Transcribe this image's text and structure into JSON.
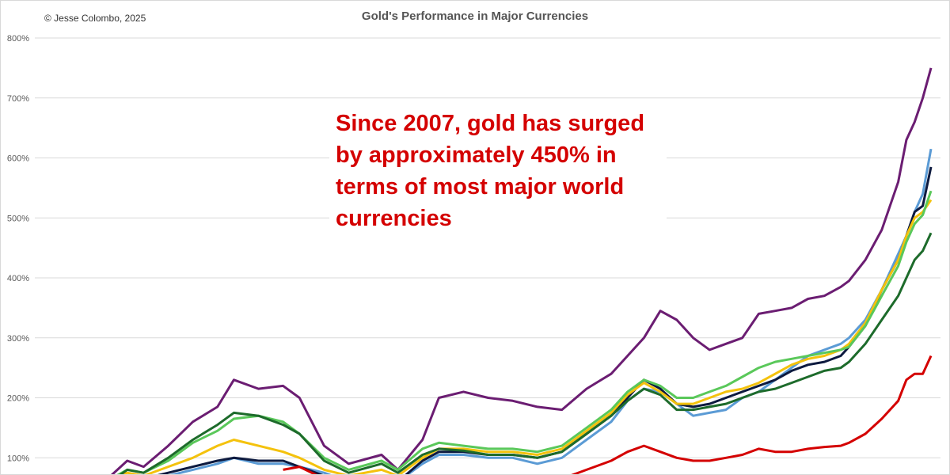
{
  "copyright": "© Jesse Colombo, 2025",
  "annotation": "Since 2007, gold has surged by approximately 450% in terms of most major world currencies",
  "chart_data": {
    "type": "line",
    "title": "Gold's Performance in Major Currencies",
    "xlabel": "",
    "ylabel": "",
    "ylim": [
      0,
      800
    ],
    "y_ticks": [
      "100%",
      "200%",
      "300%",
      "400%",
      "500%",
      "600%",
      "700%",
      "800%"
    ],
    "grid": true,
    "legend": "none",
    "x_domain": [
      0,
      100
    ],
    "series": [
      {
        "color": "#6b1d72",
        "points": [
          [
            0,
            70
          ],
          [
            2,
            95
          ],
          [
            4,
            85
          ],
          [
            7,
            120
          ],
          [
            10,
            160
          ],
          [
            13,
            185
          ],
          [
            15,
            230
          ],
          [
            18,
            215
          ],
          [
            21,
            220
          ],
          [
            23,
            200
          ],
          [
            26,
            120
          ],
          [
            29,
            90
          ],
          [
            33,
            105
          ],
          [
            35,
            80
          ],
          [
            38,
            130
          ],
          [
            40,
            200
          ],
          [
            43,
            210
          ],
          [
            46,
            200
          ],
          [
            49,
            195
          ],
          [
            52,
            185
          ],
          [
            55,
            180
          ],
          [
            58,
            215
          ],
          [
            61,
            240
          ],
          [
            63,
            270
          ],
          [
            65,
            300
          ],
          [
            67,
            345
          ],
          [
            69,
            330
          ],
          [
            71,
            300
          ],
          [
            73,
            280
          ],
          [
            75,
            290
          ],
          [
            77,
            300
          ],
          [
            79,
            340
          ],
          [
            81,
            345
          ],
          [
            83,
            350
          ],
          [
            85,
            365
          ],
          [
            87,
            370
          ],
          [
            89,
            385
          ],
          [
            90,
            395
          ],
          [
            92,
            430
          ],
          [
            94,
            480
          ],
          [
            96,
            560
          ],
          [
            97,
            630
          ],
          [
            98,
            660
          ],
          [
            99,
            700
          ],
          [
            100,
            750
          ]
        ]
      },
      {
        "color": "#5b9bd5",
        "points": [
          [
            0,
            60
          ],
          [
            2,
            70
          ],
          [
            4,
            65
          ],
          [
            7,
            70
          ],
          [
            10,
            80
          ],
          [
            13,
            90
          ],
          [
            15,
            100
          ],
          [
            18,
            90
          ],
          [
            21,
            90
          ],
          [
            23,
            85
          ],
          [
            26,
            75
          ],
          [
            29,
            60
          ],
          [
            33,
            70
          ],
          [
            35,
            60
          ],
          [
            38,
            90
          ],
          [
            40,
            105
          ],
          [
            43,
            105
          ],
          [
            46,
            100
          ],
          [
            49,
            100
          ],
          [
            52,
            90
          ],
          [
            55,
            100
          ],
          [
            58,
            130
          ],
          [
            61,
            160
          ],
          [
            63,
            195
          ],
          [
            65,
            215
          ],
          [
            67,
            210
          ],
          [
            69,
            190
          ],
          [
            71,
            170
          ],
          [
            73,
            175
          ],
          [
            75,
            180
          ],
          [
            77,
            200
          ],
          [
            79,
            210
          ],
          [
            81,
            230
          ],
          [
            83,
            250
          ],
          [
            85,
            270
          ],
          [
            87,
            280
          ],
          [
            89,
            290
          ],
          [
            90,
            300
          ],
          [
            92,
            330
          ],
          [
            94,
            380
          ],
          [
            96,
            440
          ],
          [
            97,
            470
          ],
          [
            98,
            510
          ],
          [
            99,
            540
          ],
          [
            100,
            615
          ]
        ]
      },
      {
        "color": "#0d1a3f",
        "points": [
          [
            0,
            55
          ],
          [
            2,
            70
          ],
          [
            4,
            65
          ],
          [
            7,
            75
          ],
          [
            10,
            85
          ],
          [
            13,
            95
          ],
          [
            15,
            100
          ],
          [
            18,
            95
          ],
          [
            21,
            95
          ],
          [
            23,
            85
          ],
          [
            26,
            70
          ],
          [
            29,
            60
          ],
          [
            33,
            70
          ],
          [
            35,
            60
          ],
          [
            38,
            95
          ],
          [
            40,
            110
          ],
          [
            43,
            110
          ],
          [
            46,
            105
          ],
          [
            49,
            105
          ],
          [
            52,
            100
          ],
          [
            55,
            110
          ],
          [
            58,
            140
          ],
          [
            61,
            170
          ],
          [
            63,
            200
          ],
          [
            65,
            230
          ],
          [
            67,
            215
          ],
          [
            69,
            190
          ],
          [
            71,
            185
          ],
          [
            73,
            190
          ],
          [
            75,
            200
          ],
          [
            77,
            210
          ],
          [
            79,
            220
          ],
          [
            81,
            230
          ],
          [
            83,
            245
          ],
          [
            85,
            255
          ],
          [
            87,
            260
          ],
          [
            89,
            270
          ],
          [
            90,
            285
          ],
          [
            92,
            320
          ],
          [
            94,
            380
          ],
          [
            96,
            430
          ],
          [
            97,
            470
          ],
          [
            98,
            510
          ],
          [
            99,
            520
          ],
          [
            100,
            585
          ]
        ]
      },
      {
        "color": "#f4c20d",
        "points": [
          [
            0,
            60
          ],
          [
            2,
            75
          ],
          [
            4,
            70
          ],
          [
            7,
            85
          ],
          [
            10,
            100
          ],
          [
            13,
            120
          ],
          [
            15,
            130
          ],
          [
            18,
            120
          ],
          [
            21,
            110
          ],
          [
            23,
            100
          ],
          [
            26,
            80
          ],
          [
            29,
            70
          ],
          [
            33,
            80
          ],
          [
            35,
            70
          ],
          [
            38,
            100
          ],
          [
            40,
            115
          ],
          [
            43,
            115
          ],
          [
            46,
            110
          ],
          [
            49,
            110
          ],
          [
            52,
            105
          ],
          [
            55,
            115
          ],
          [
            58,
            145
          ],
          [
            61,
            175
          ],
          [
            63,
            205
          ],
          [
            65,
            225
          ],
          [
            67,
            210
          ],
          [
            69,
            190
          ],
          [
            71,
            190
          ],
          [
            73,
            200
          ],
          [
            75,
            210
          ],
          [
            77,
            215
          ],
          [
            79,
            225
          ],
          [
            81,
            240
          ],
          [
            83,
            255
          ],
          [
            85,
            265
          ],
          [
            87,
            270
          ],
          [
            89,
            280
          ],
          [
            90,
            290
          ],
          [
            92,
            325
          ],
          [
            94,
            380
          ],
          [
            96,
            430
          ],
          [
            97,
            470
          ],
          [
            98,
            500
          ],
          [
            99,
            510
          ],
          [
            100,
            530
          ]
        ]
      },
      {
        "color": "#5ac85a",
        "points": [
          [
            0,
            65
          ],
          [
            2,
            80
          ],
          [
            4,
            75
          ],
          [
            7,
            95
          ],
          [
            10,
            125
          ],
          [
            13,
            145
          ],
          [
            15,
            165
          ],
          [
            18,
            170
          ],
          [
            21,
            160
          ],
          [
            23,
            140
          ],
          [
            26,
            100
          ],
          [
            29,
            80
          ],
          [
            33,
            95
          ],
          [
            35,
            80
          ],
          [
            38,
            115
          ],
          [
            40,
            125
          ],
          [
            43,
            120
          ],
          [
            46,
            115
          ],
          [
            49,
            115
          ],
          [
            52,
            110
          ],
          [
            55,
            120
          ],
          [
            58,
            150
          ],
          [
            61,
            180
          ],
          [
            63,
            210
          ],
          [
            65,
            230
          ],
          [
            67,
            220
          ],
          [
            69,
            200
          ],
          [
            71,
            200
          ],
          [
            73,
            210
          ],
          [
            75,
            220
          ],
          [
            77,
            235
          ],
          [
            79,
            250
          ],
          [
            81,
            260
          ],
          [
            83,
            265
          ],
          [
            85,
            270
          ],
          [
            87,
            275
          ],
          [
            89,
            280
          ],
          [
            90,
            285
          ],
          [
            92,
            320
          ],
          [
            94,
            370
          ],
          [
            96,
            420
          ],
          [
            97,
            460
          ],
          [
            98,
            490
          ],
          [
            99,
            505
          ],
          [
            100,
            545
          ]
        ]
      },
      {
        "color": "#1d6b2b",
        "points": [
          [
            0,
            60
          ],
          [
            2,
            80
          ],
          [
            4,
            75
          ],
          [
            7,
            100
          ],
          [
            10,
            130
          ],
          [
            13,
            155
          ],
          [
            15,
            175
          ],
          [
            18,
            170
          ],
          [
            21,
            155
          ],
          [
            23,
            140
          ],
          [
            26,
            95
          ],
          [
            29,
            75
          ],
          [
            33,
            90
          ],
          [
            35,
            75
          ],
          [
            38,
            105
          ],
          [
            40,
            115
          ],
          [
            43,
            112
          ],
          [
            46,
            105
          ],
          [
            49,
            105
          ],
          [
            52,
            100
          ],
          [
            55,
            110
          ],
          [
            58,
            140
          ],
          [
            61,
            170
          ],
          [
            63,
            195
          ],
          [
            65,
            215
          ],
          [
            67,
            205
          ],
          [
            69,
            180
          ],
          [
            71,
            180
          ],
          [
            73,
            185
          ],
          [
            75,
            190
          ],
          [
            77,
            200
          ],
          [
            79,
            210
          ],
          [
            81,
            215
          ],
          [
            83,
            225
          ],
          [
            85,
            235
          ],
          [
            87,
            245
          ],
          [
            89,
            250
          ],
          [
            90,
            260
          ],
          [
            92,
            290
          ],
          [
            94,
            330
          ],
          [
            96,
            370
          ],
          [
            97,
            400
          ],
          [
            98,
            430
          ],
          [
            99,
            445
          ],
          [
            100,
            475
          ]
        ]
      },
      {
        "color": "#d40000",
        "points": [
          [
            21,
            80
          ],
          [
            23,
            85
          ],
          [
            26,
            65
          ],
          [
            29,
            50
          ],
          [
            33,
            60
          ],
          [
            35,
            50
          ],
          [
            38,
            65
          ],
          [
            40,
            70
          ],
          [
            43,
            70
          ],
          [
            46,
            65
          ],
          [
            49,
            65
          ],
          [
            52,
            60
          ],
          [
            55,
            65
          ],
          [
            58,
            80
          ],
          [
            61,
            95
          ],
          [
            63,
            110
          ],
          [
            65,
            120
          ],
          [
            67,
            110
          ],
          [
            69,
            100
          ],
          [
            71,
            95
          ],
          [
            73,
            95
          ],
          [
            75,
            100
          ],
          [
            77,
            105
          ],
          [
            79,
            115
          ],
          [
            81,
            110
          ],
          [
            83,
            110
          ],
          [
            85,
            115
          ],
          [
            87,
            118
          ],
          [
            89,
            120
          ],
          [
            90,
            125
          ],
          [
            92,
            140
          ],
          [
            94,
            165
          ],
          [
            96,
            195
          ],
          [
            97,
            230
          ],
          [
            98,
            240
          ],
          [
            99,
            240
          ],
          [
            100,
            270
          ]
        ]
      }
    ]
  }
}
